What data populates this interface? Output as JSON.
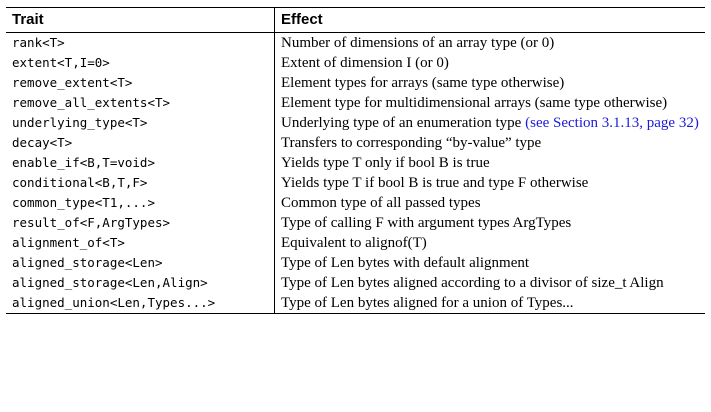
{
  "headers": {
    "trait": "Trait",
    "effect": "Effect"
  },
  "rows": [
    {
      "trait": "rank<T>",
      "effect": "Number of dimensions of an array type (or 0)"
    },
    {
      "trait": "extent<T,I=0>",
      "effect": "Extent of dimension I (or 0)"
    },
    {
      "trait": "remove_extent<T>",
      "effect": "Element types for arrays (same type otherwise)"
    },
    {
      "trait": "remove_all_extents<T>",
      "effect": "Element type for multidimensional arrays (same type otherwise)"
    },
    {
      "trait": "underlying_type<T>",
      "effect": "Underlying type of an enumeration type",
      "link": "(see Section 3.1.13, page 32)"
    },
    {
      "trait": "decay<T>",
      "effect": "Transfers to corresponding “by-value” type"
    },
    {
      "trait": "enable_if<B,T=void>",
      "effect": "Yields type T only if bool B is true"
    },
    {
      "trait": "conditional<B,T,F>",
      "effect": "Yields type T if bool B is true and type F otherwise"
    },
    {
      "trait": "common_type<T1,...>",
      "effect": "Common type of all passed types"
    },
    {
      "trait": "result_of<F,ArgTypes>",
      "effect": "Type of calling F with argument types ArgTypes"
    },
    {
      "trait": "alignment_of<T>",
      "effect": "Equivalent to alignof(T)"
    },
    {
      "trait": "aligned_storage<Len>",
      "effect": "Type of Len bytes with default alignment"
    },
    {
      "trait": "aligned_storage<Len,Align>",
      "effect": "Type of Len bytes aligned according to a divisor of size_t Align"
    },
    {
      "trait": "aligned_union<Len,Types...>",
      "effect": "Type of Len bytes aligned for a union of Types..."
    }
  ]
}
